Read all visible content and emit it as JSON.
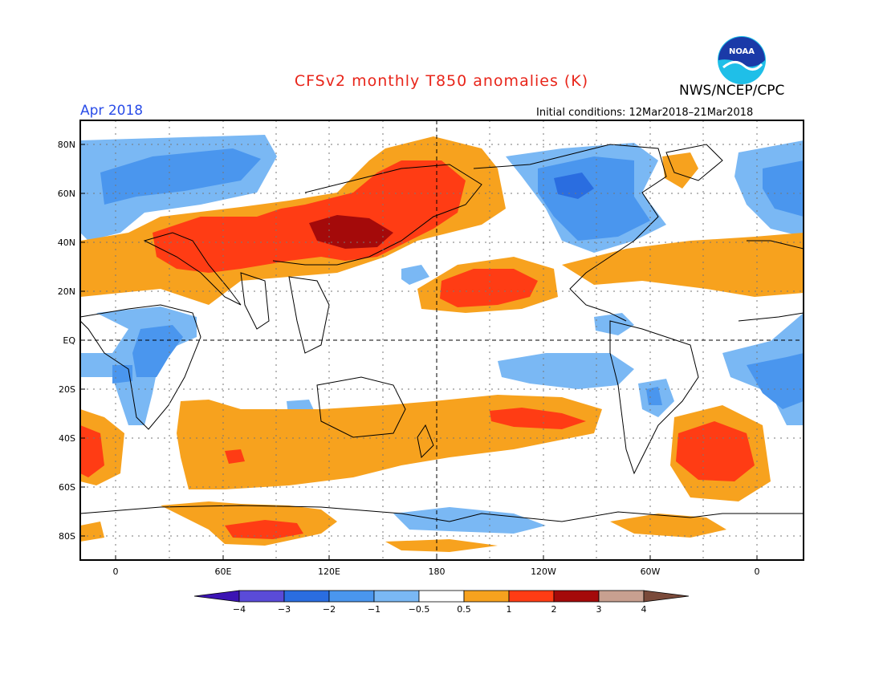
{
  "title": "CFSv2 monthly T850 anomalies (K)",
  "agency": "NWS/NCEP/CPC",
  "logo_text": "NOAA",
  "valid_month": "Apr 2018",
  "initial_conditions": "Initial conditions: 12Mar2018–21Mar2018",
  "lat_labels": [
    "80N",
    "60N",
    "40N",
    "20N",
    "EQ",
    "20S",
    "40S",
    "60S",
    "80S"
  ],
  "lon_labels": [
    "0",
    "60E",
    "120E",
    "180",
    "120W",
    "60W",
    "0"
  ],
  "colorbar": {
    "labels": [
      "−4",
      "−3",
      "−2",
      "−1",
      "−0.5",
      "0.5",
      "1",
      "2",
      "3",
      "4"
    ],
    "colors": [
      "#3c14b4",
      "#5a4bd8",
      "#2a6de0",
      "#4a96ee",
      "#7ab8f4",
      "#ffffff",
      "#f7a21e",
      "#ff3c14",
      "#a40a0a",
      "#c8a090",
      "#7a4a3a"
    ]
  }
}
